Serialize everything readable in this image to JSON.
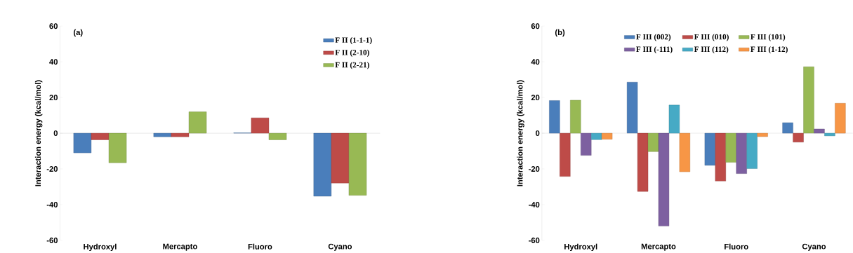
{
  "chart_data": [
    {
      "type": "bar",
      "title": "(a)",
      "ylabel": "Interaction energy (kcal/mol)",
      "categories": [
        "Hydroxyl",
        "Mercapto",
        "Fluoro",
        "Cyano"
      ],
      "ylim": [
        -60,
        60
      ],
      "yticks": [
        -60,
        -40,
        -20,
        0,
        20,
        40,
        60
      ],
      "legend": "top right",
      "series": [
        {
          "name": "F II (1-1-1)",
          "color": "#4a7ebb",
          "values": [
            -11,
            -2,
            0.2,
            -35.3
          ]
        },
        {
          "name": "F II (2-10)",
          "color": "#be4b48",
          "values": [
            -3.7,
            -2,
            8.6,
            -27.9
          ]
        },
        {
          "name": "F II (2-21)",
          "color": "#98b954",
          "values": [
            -16.6,
            12,
            -3.7,
            -34.8
          ]
        }
      ]
    },
    {
      "type": "bar",
      "title": "(b)",
      "ylabel": "Interaction energy (kcal/mol)",
      "categories": [
        "Hydroxyl",
        "Mercapto",
        "Fluoro",
        "Cyano"
      ],
      "ylim": [
        -60,
        60
      ],
      "yticks": [
        -60,
        -40,
        -20,
        0,
        20,
        40,
        60
      ],
      "legend": "top",
      "series": [
        {
          "name": "F III (002)",
          "color": "#4a7ebb",
          "values": [
            18.3,
            28.6,
            -18,
            5.9
          ]
        },
        {
          "name": "F III (010)",
          "color": "#be4b48",
          "values": [
            -24.2,
            -32.6,
            -26.8,
            -5
          ]
        },
        {
          "name": "F III (101)",
          "color": "#98b954",
          "values": [
            18.5,
            -10.3,
            -16.3,
            37.2
          ]
        },
        {
          "name": "F III (-111)",
          "color": "#7d60a0",
          "values": [
            -12.4,
            -52,
            -22.6,
            2.4
          ]
        },
        {
          "name": "F III (112)",
          "color": "#46aac5",
          "values": [
            -3.6,
            15.8,
            -19.8,
            -1.5
          ]
        },
        {
          "name": "F III (1-12)",
          "color": "#f79646",
          "values": [
            -3.4,
            -21.6,
            -1.9,
            16.8
          ]
        }
      ]
    }
  ]
}
